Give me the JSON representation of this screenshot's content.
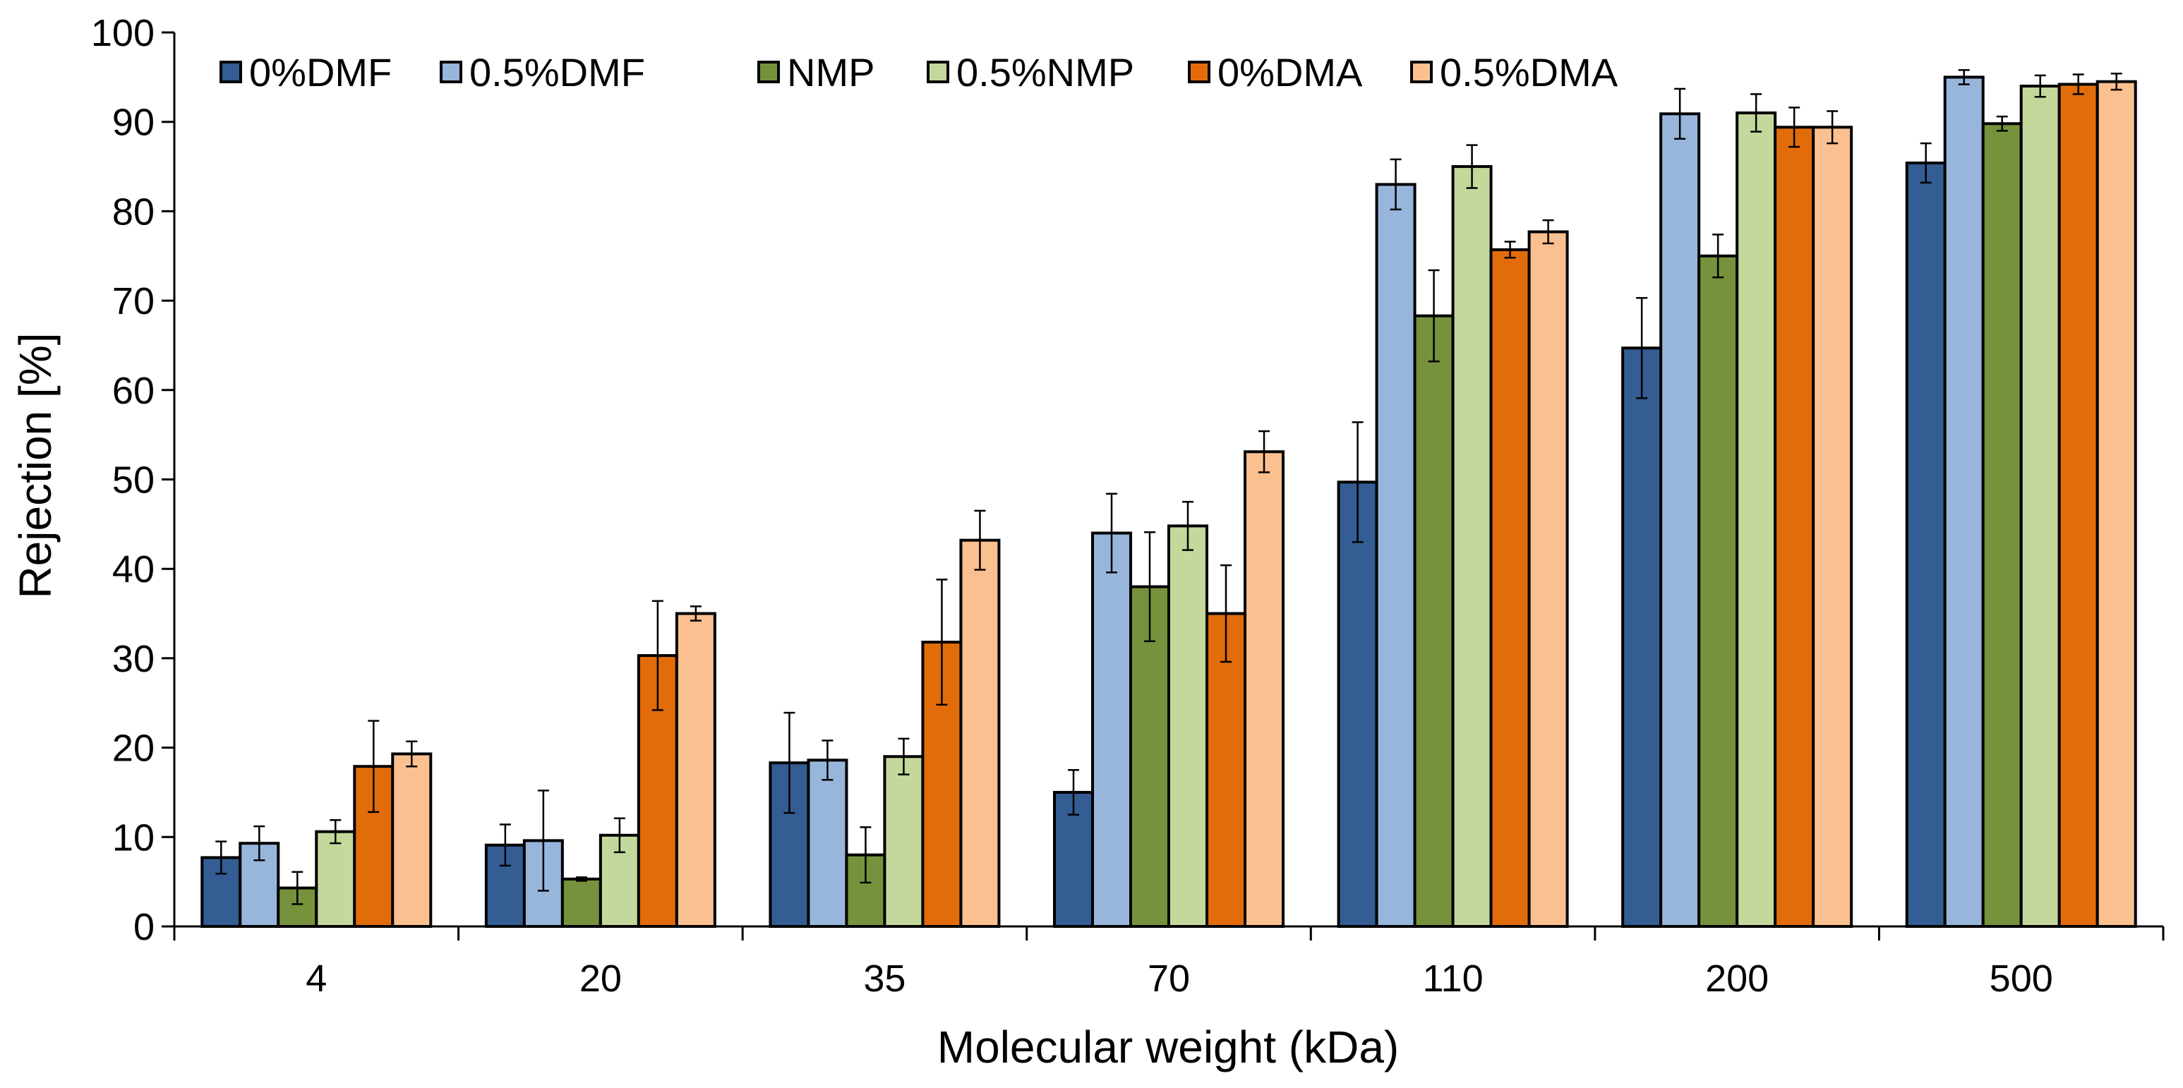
{
  "chart_data": {
    "type": "bar",
    "title": "",
    "xlabel": "Molecular weight (kDa)",
    "ylabel": "Rejection [%]",
    "ylim": [
      0,
      100
    ],
    "yticks": [
      0,
      10,
      20,
      30,
      40,
      50,
      60,
      70,
      80,
      90,
      100
    ],
    "grid": false,
    "legend_position": "top-left",
    "categories": [
      "4",
      "20",
      "35",
      "70",
      "110",
      "200",
      "500"
    ],
    "series": [
      {
        "name": "0%DMF",
        "color": "#335d93",
        "values": [
          7.7,
          9.1,
          18.3,
          15.0,
          49.7,
          64.7,
          85.4
        ],
        "errors": [
          1.8,
          2.3,
          5.6,
          2.5,
          6.7,
          5.6,
          2.2
        ]
      },
      {
        "name": "0.5%DMF",
        "color": "#98b6dc",
        "values": [
          9.3,
          9.6,
          18.6,
          44.0,
          83.0,
          90.9,
          95.0
        ],
        "errors": [
          1.9,
          5.6,
          2.2,
          4.4,
          2.8,
          2.8,
          0.8
        ]
      },
      {
        "name": "NMP",
        "color": "#76923c",
        "values": [
          4.3,
          5.3,
          8.0,
          38.0,
          68.3,
          75.0,
          89.8
        ],
        "errors": [
          1.8,
          0.2,
          3.1,
          6.1,
          5.1,
          2.4,
          0.8
        ]
      },
      {
        "name": "0.5%NMP",
        "color": "#c4d89b",
        "values": [
          10.6,
          10.2,
          19.0,
          44.8,
          85.0,
          91.0,
          94.0
        ],
        "errors": [
          1.3,
          1.9,
          2.0,
          2.7,
          2.4,
          2.1,
          1.2
        ]
      },
      {
        "name": "0%DMA",
        "color": "#e36c0a",
        "values": [
          17.9,
          30.3,
          31.8,
          35.0,
          75.7,
          89.4,
          94.2
        ],
        "errors": [
          5.1,
          6.1,
          7.0,
          5.4,
          0.9,
          2.2,
          1.1
        ]
      },
      {
        "name": "0.5%DMA",
        "color": "#fac090",
        "values": [
          19.3,
          35.0,
          43.2,
          53.1,
          77.7,
          89.4,
          94.5
        ],
        "errors": [
          1.4,
          0.8,
          3.3,
          2.3,
          1.3,
          1.8,
          0.9
        ]
      }
    ]
  }
}
